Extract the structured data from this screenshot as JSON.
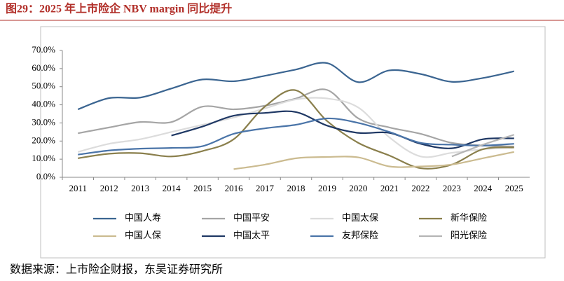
{
  "chart_data": {
    "type": "line",
    "title": "图29：2025 年上市险企 NBV margin 同比提升",
    "source": "数据来源：上市险企财报，东吴证券研究所",
    "categories": [
      "2011",
      "2012",
      "2013",
      "2014",
      "2015",
      "2016",
      "2017",
      "2018",
      "2019",
      "2020",
      "2021",
      "2022",
      "2023",
      "2024",
      "2025"
    ],
    "ylim": [
      0,
      70
    ],
    "yticks": [
      {
        "value": 0,
        "label": "0.0%"
      },
      {
        "value": 10,
        "label": "10.0%"
      },
      {
        "value": 20,
        "label": "20.0%"
      },
      {
        "value": 30,
        "label": "30.0%"
      },
      {
        "value": 40,
        "label": "40.0%"
      },
      {
        "value": 50,
        "label": "50.0%"
      },
      {
        "value": 60,
        "label": "60.0%"
      },
      {
        "value": 70,
        "label": "70.0%"
      }
    ],
    "series": [
      {
        "name": "中国人寿",
        "color": "#3b6591",
        "values": [
          37.5,
          43.7,
          44,
          49,
          54,
          53,
          56,
          59.5,
          63,
          52.5,
          59,
          57,
          52.7,
          54.8,
          58.5
        ]
      },
      {
        "name": "中国平安",
        "color": "#a5a5a5",
        "values": [
          24.3,
          27.5,
          30.5,
          30.5,
          39,
          37.5,
          39.5,
          43.5,
          48.2,
          32.5,
          27.5,
          24,
          19,
          17.5,
          17
        ]
      },
      {
        "name": "中国太保",
        "color": "#dcdcdc",
        "values": [
          14,
          18.5,
          21,
          25,
          29,
          33,
          38,
          43,
          43.5,
          38.5,
          22,
          11.5,
          13.5,
          15.5,
          16.3
        ]
      },
      {
        "name": "新华保险",
        "color": "#8a7f4c",
        "values": [
          10.5,
          13,
          13.3,
          11.5,
          14.5,
          21,
          39,
          48,
          31,
          19,
          12,
          5,
          7,
          15.5,
          16.5
        ]
      },
      {
        "name": "中国人保",
        "color": "#cbbb90",
        "values": [
          null,
          null,
          null,
          null,
          null,
          4.5,
          7,
          10.5,
          11.2,
          11,
          6,
          6,
          7,
          10.5,
          14
        ]
      },
      {
        "name": "中国太平",
        "color": "#1f3864",
        "values": [
          null,
          null,
          null,
          23,
          28,
          34,
          35.5,
          36,
          28.5,
          24.5,
          24.5,
          18.5,
          16,
          21,
          21.5
        ]
      },
      {
        "name": "友邦保险",
        "color": "#4a74a8",
        "values": [
          12.5,
          14.8,
          15.8,
          16.2,
          17.2,
          24,
          27,
          29,
          32.5,
          30,
          25,
          19,
          18,
          17.5,
          18.5
        ]
      },
      {
        "name": "阳光保险",
        "color": "#b5b5b5",
        "values": [
          null,
          null,
          null,
          null,
          null,
          null,
          null,
          null,
          null,
          null,
          null,
          null,
          11.5,
          18,
          23.5
        ]
      }
    ]
  }
}
